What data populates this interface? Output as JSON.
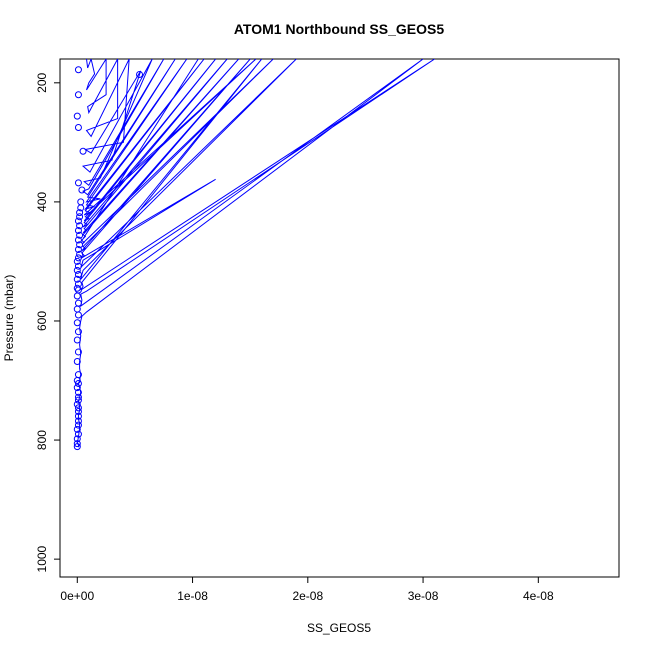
{
  "chart_data": {
    "type": "line",
    "title": "ATOM1 Northbound SS_GEOS5",
    "xlabel": "SS_GEOS5",
    "ylabel": "Pressure (mbar)",
    "xlim": [
      -1.5e-09,
      4.7e-08
    ],
    "ylim": [
      1030,
      160
    ],
    "y_reversed": true,
    "grid": false,
    "x_ticks": [
      {
        "value": 0,
        "label": "0e+00"
      },
      {
        "value": 1e-08,
        "label": "1e-08"
      },
      {
        "value": 2e-08,
        "label": "2e-08"
      },
      {
        "value": 3e-08,
        "label": "3e-08"
      },
      {
        "value": 4e-08,
        "label": "4e-08"
      }
    ],
    "y_ticks": [
      {
        "value": 200,
        "label": "200"
      },
      {
        "value": 400,
        "label": "400"
      },
      {
        "value": 600,
        "label": "600"
      },
      {
        "value": 800,
        "label": "800"
      },
      {
        "value": 1000,
        "label": "1000"
      }
    ],
    "series": [
      {
        "color": "#0000ff",
        "points": [
          [
            1e-10,
            812
          ],
          [
            1e-10,
            808
          ],
          [
            0,
            805
          ],
          [
            1e-10,
            795
          ],
          [
            2e-10,
            780
          ],
          [
            2e-10,
            772
          ],
          [
            1e-10,
            765
          ],
          [
            1e-10,
            758
          ],
          [
            2e-10,
            750
          ],
          [
            2e-10,
            742
          ],
          [
            1e-10,
            735
          ],
          [
            2e-10,
            728
          ],
          [
            3e-10,
            720
          ],
          [
            2e-10,
            712
          ],
          [
            1e-10,
            705
          ],
          [
            2e-10,
            700
          ],
          [
            3e-10,
            690
          ],
          [
            2e-10,
            680
          ],
          [
            2e-10,
            668
          ],
          [
            3e-10,
            655
          ],
          [
            2e-10,
            640
          ],
          [
            3e-10,
            625
          ],
          [
            2e-10,
            612
          ],
          [
            3e-10,
            600
          ],
          [
            4e-10,
            592
          ],
          [
            8e-10,
            585
          ],
          [
            3e-08,
            160
          ],
          [
            3e-10,
            575
          ],
          [
            4e-10,
            565
          ],
          [
            3e-10,
            555
          ],
          [
            8e-10,
            550
          ],
          [
            3.1e-08,
            160
          ],
          [
            3e-10,
            548
          ],
          [
            5e-10,
            542
          ],
          [
            4e-10,
            535
          ],
          [
            1.6e-08,
            160
          ],
          [
            3e-10,
            530
          ],
          [
            4e-10,
            522
          ],
          [
            5e-10,
            515
          ],
          [
            1.9e-08,
            160
          ],
          [
            3e-10,
            510
          ],
          [
            4e-10,
            505
          ],
          [
            5e-10,
            498
          ],
          [
            1.2e-08,
            362
          ],
          [
            3e-10,
            495
          ],
          [
            6e-10,
            490
          ],
          [
            4e-10,
            486
          ],
          [
            1.5e-08,
            160
          ],
          [
            4e-10,
            482
          ],
          [
            7e-10,
            478
          ],
          [
            5e-10,
            475
          ],
          [
            1.7e-08,
            160
          ],
          [
            4e-10,
            471
          ],
          [
            6e-10,
            468
          ],
          [
            4e-10,
            465
          ],
          [
            1.05e-08,
            160
          ],
          [
            5e-10,
            462
          ],
          [
            7e-10,
            458
          ],
          [
            5e-10,
            455
          ],
          [
            1.4e-08,
            160
          ],
          [
            5e-10,
            452
          ],
          [
            8e-10,
            448
          ],
          [
            6e-10,
            445
          ],
          [
            1.3e-08,
            160
          ],
          [
            5e-10,
            442
          ],
          [
            9e-10,
            438
          ],
          [
            6e-10,
            435
          ],
          [
            1.2e-08,
            160
          ],
          [
            6e-10,
            432
          ],
          [
            1e-09,
            428
          ],
          [
            7e-10,
            425
          ],
          [
            1.55e-08,
            160
          ],
          [
            6e-10,
            422
          ],
          [
            1.1e-09,
            418
          ],
          [
            7e-10,
            415
          ],
          [
            1.1e-08,
            160
          ],
          [
            7e-10,
            412
          ],
          [
            1.5e-09,
            408
          ],
          [
            8e-10,
            405
          ],
          [
            9.5e-09,
            160
          ],
          [
            8e-10,
            400
          ],
          [
            2e-09,
            395
          ],
          [
            9e-10,
            392
          ],
          [
            8.5e-09,
            160
          ],
          [
            9e-10,
            388
          ],
          [
            5e-10,
            382
          ],
          [
            1e-09,
            378
          ],
          [
            7.5e-09,
            160
          ],
          [
            1e-09,
            372
          ],
          [
            6e-10,
            366
          ],
          [
            2e-09,
            360
          ],
          [
            6.5e-09,
            160
          ],
          [
            1.1e-09,
            350
          ],
          [
            5e-10,
            340
          ],
          [
            3e-09,
            330
          ],
          [
            5.5e-09,
            180
          ],
          [
            1.2e-09,
            318
          ],
          [
            7e-10,
            312
          ],
          [
            4e-09,
            300
          ],
          [
            4.5e-09,
            160
          ],
          [
            1.2e-09,
            290
          ],
          [
            8e-10,
            280
          ],
          [
            3.5e-09,
            260
          ],
          [
            3.5e-09,
            160
          ],
          [
            1e-09,
            250
          ],
          [
            9e-10,
            240
          ],
          [
            2.5e-09,
            220
          ],
          [
            2.5e-09,
            160
          ],
          [
            8e-10,
            212
          ],
          [
            1e-09,
            200
          ],
          [
            1.5e-09,
            185
          ],
          [
            1.2e-09,
            160
          ],
          [
            9e-10,
            175
          ],
          [
            8e-10,
            160
          ]
        ],
        "markers": [
          [
            0,
            811
          ],
          [
            0,
            806
          ],
          [
            0,
            798
          ],
          [
            1e-10,
            790
          ],
          [
            0,
            782
          ],
          [
            1e-10,
            775
          ],
          [
            1e-10,
            768
          ],
          [
            1e-10,
            760
          ],
          [
            1e-10,
            752
          ],
          [
            1e-10,
            746
          ],
          [
            0,
            740
          ],
          [
            1e-10,
            733
          ],
          [
            1e-10,
            728
          ],
          [
            1e-10,
            720
          ],
          [
            0,
            712
          ],
          [
            1e-10,
            705
          ],
          [
            0,
            700
          ],
          [
            1e-10,
            690
          ],
          [
            0,
            668
          ],
          [
            1e-10,
            652
          ],
          [
            0,
            632
          ],
          [
            1e-10,
            618
          ],
          [
            0,
            603
          ],
          [
            1e-10,
            590
          ],
          [
            0,
            580
          ],
          [
            1e-10,
            570
          ],
          [
            0,
            558
          ],
          [
            1e-10,
            548
          ],
          [
            0,
            545
          ],
          [
            1e-10,
            538
          ],
          [
            0,
            530
          ],
          [
            1e-10,
            522
          ],
          [
            0,
            515
          ],
          [
            1e-10,
            508
          ],
          [
            0,
            500
          ],
          [
            1e-10,
            494
          ],
          [
            2e-10,
            488
          ],
          [
            1e-10,
            480
          ],
          [
            2e-10,
            472
          ],
          [
            1e-10,
            464
          ],
          [
            2e-10,
            456
          ],
          [
            1e-10,
            448
          ],
          [
            2e-10,
            440
          ],
          [
            1e-10,
            432
          ],
          [
            2e-10,
            425
          ],
          [
            2e-10,
            418
          ],
          [
            3e-10,
            410
          ],
          [
            3e-10,
            400
          ],
          [
            4e-10,
            380
          ],
          [
            1e-10,
            368
          ],
          [
            5e-10,
            315
          ],
          [
            1e-10,
            275
          ],
          [
            0,
            256
          ],
          [
            1e-10,
            220
          ],
          [
            1e-10,
            178
          ],
          [
            5.4e-09,
            186
          ]
        ]
      }
    ]
  }
}
